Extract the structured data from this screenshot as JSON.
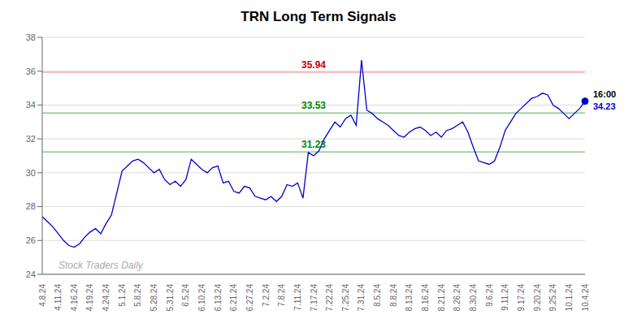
{
  "chart_data": {
    "type": "line",
    "title": "TRN Long Term Signals",
    "categories": [
      "4.8.24",
      null,
      null,
      "4.11.24",
      null,
      null,
      "4.16.24",
      null,
      null,
      "4.19.24",
      null,
      null,
      "4.24.24",
      null,
      null,
      "5.1.24",
      null,
      null,
      "5.8.24",
      null,
      null,
      "5.28.24",
      null,
      null,
      "5.31.24",
      null,
      null,
      "6.5.24",
      null,
      null,
      "6.10.24",
      null,
      null,
      "6.13.24",
      null,
      null,
      "6.21.24",
      null,
      null,
      "6.27.24",
      null,
      null,
      "7.2.24",
      null,
      null,
      "7.8.24",
      null,
      null,
      "7.11.24",
      null,
      null,
      "7.17.24",
      null,
      null,
      "7.22.24",
      null,
      null,
      "7.25.24",
      null,
      null,
      "7.31.24",
      null,
      null,
      "8.5.24",
      null,
      null,
      "8.8.24",
      null,
      null,
      "8.13.24",
      null,
      null,
      "8.16.24",
      null,
      null,
      "8.21.24",
      null,
      null,
      "8.26.24",
      null,
      null,
      "8.30.24",
      null,
      null,
      "9.6.24",
      null,
      null,
      "9.11.24",
      null,
      null,
      "9.17.24",
      null,
      null,
      "9.20.24",
      null,
      null,
      "9.25.24",
      null,
      null,
      "10.1.24",
      null,
      null,
      "10.4.24"
    ],
    "values": [
      27.4,
      27.1,
      26.8,
      26.4,
      26.0,
      25.7,
      25.6,
      25.8,
      26.2,
      26.5,
      26.7,
      26.4,
      27.0,
      27.5,
      28.8,
      30.1,
      30.4,
      30.7,
      30.8,
      30.6,
      30.3,
      30.0,
      30.2,
      29.6,
      29.3,
      29.5,
      29.2,
      29.6,
      30.8,
      30.5,
      30.2,
      30.0,
      30.3,
      30.4,
      29.4,
      29.5,
      28.9,
      28.8,
      29.2,
      29.1,
      28.6,
      28.5,
      28.4,
      28.6,
      28.3,
      28.6,
      29.3,
      29.2,
      29.4,
      28.5,
      31.2,
      31.0,
      31.3,
      32.0,
      32.5,
      33.0,
      32.7,
      33.2,
      33.4,
      32.8,
      36.65,
      33.7,
      33.5,
      33.2,
      33.0,
      32.8,
      32.5,
      32.2,
      32.1,
      32.4,
      32.6,
      32.7,
      32.5,
      32.2,
      32.4,
      32.1,
      32.5,
      32.6,
      32.8,
      33.0,
      32.4,
      31.5,
      30.7,
      30.6,
      30.5,
      30.7,
      31.5,
      32.5,
      33.0,
      33.5,
      33.8,
      34.1,
      34.4,
      34.5,
      34.7,
      34.6,
      34.0,
      33.8,
      33.5,
      33.2,
      33.5,
      33.8,
      34.23
    ],
    "color": "#0000cc",
    "reference_lines": [
      {
        "y": 35.94,
        "color": "#ffaaaa",
        "label": "35.94",
        "label_color": "#cc0000"
      },
      {
        "y": 33.53,
        "color": "#88cc88",
        "label": "33.53",
        "label_color": "#008800"
      },
      {
        "y": 31.23,
        "color": "#88cc88",
        "label": "31.23",
        "label_color": "#008800"
      }
    ],
    "annotations": [
      {
        "text": "16:00",
        "color": "#000000"
      },
      {
        "text": "34.23",
        "color": "#0000dd"
      },
      {
        "text": "Stock Traders Daily"
      }
    ],
    "ylim": [
      24,
      38
    ],
    "yticks": [
      24,
      26,
      28,
      30,
      32,
      34,
      36,
      38
    ],
    "grid": true
  }
}
